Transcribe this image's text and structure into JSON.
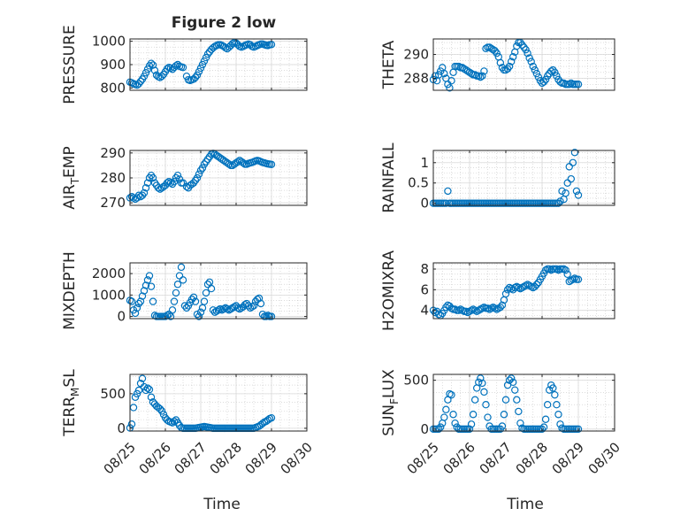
{
  "figure_title": "Figure 2 low",
  "shared_xlabel": "Time",
  "x_tick_labels": [
    "08/25",
    "08/26",
    "08/27",
    "08/28",
    "08/29",
    "08/30"
  ],
  "colors": {
    "marker": "#0072BD",
    "axis": "#262626",
    "grid": "#b0b0b0"
  },
  "chart_data": [
    {
      "id": "pressure",
      "type": "scatter",
      "ylabel": "PRESSURE",
      "xlim": [
        0,
        5
      ],
      "ylim": [
        790,
        1010
      ],
      "yticks": [
        800,
        900,
        1000
      ],
      "grid": true,
      "x": [
        0,
        0.05,
        0.1,
        0.15,
        0.2,
        0.25,
        0.3,
        0.35,
        0.4,
        0.45,
        0.5,
        0.55,
        0.6,
        0.65,
        0.7,
        0.75,
        0.8,
        0.85,
        0.9,
        0.95,
        1.0,
        1.05,
        1.1,
        1.15,
        1.2,
        1.25,
        1.3,
        1.35,
        1.4,
        1.45,
        1.5,
        1.6,
        1.65,
        1.7,
        1.75,
        1.8,
        1.85,
        1.9,
        1.95,
        2.0,
        2.05,
        2.1,
        2.15,
        2.2,
        2.25,
        2.3,
        2.35,
        2.4,
        2.45,
        2.5,
        2.55,
        2.6,
        2.65,
        2.7,
        2.75,
        2.8,
        2.85,
        2.9,
        2.95,
        3.0,
        3.05,
        3.1,
        3.15,
        3.2,
        3.25,
        3.3,
        3.35,
        3.4,
        3.45,
        3.5,
        3.55,
        3.6,
        3.65,
        3.7,
        3.75,
        3.8,
        3.85,
        3.9,
        3.95,
        4.0
      ],
      "y": [
        825,
        822,
        818,
        815,
        812,
        818,
        828,
        838,
        850,
        865,
        880,
        895,
        905,
        898,
        875,
        855,
        848,
        845,
        850,
        858,
        870,
        882,
        888,
        885,
        880,
        888,
        895,
        900,
        893,
        890,
        888,
        850,
        835,
        832,
        835,
        838,
        845,
        855,
        870,
        885,
        900,
        915,
        930,
        945,
        955,
        965,
        972,
        978,
        982,
        985,
        985,
        982,
        978,
        972,
        968,
        975,
        982,
        990,
        995,
        992,
        985,
        978,
        975,
        978,
        982,
        985,
        988,
        985,
        978,
        975,
        978,
        982,
        985,
        988,
        988,
        985,
        983,
        982,
        985,
        986
      ]
    },
    {
      "id": "theta",
      "type": "scatter",
      "ylabel": "THETA",
      "xlim": [
        0,
        5
      ],
      "ylim": [
        287,
        291.3
      ],
      "yticks": [
        288,
        290
      ],
      "grid": true,
      "x": [
        0,
        0.05,
        0.1,
        0.15,
        0.2,
        0.25,
        0.3,
        0.35,
        0.4,
        0.45,
        0.5,
        0.55,
        0.6,
        0.65,
        0.7,
        0.75,
        0.8,
        0.85,
        0.9,
        0.95,
        1.0,
        1.05,
        1.1,
        1.15,
        1.2,
        1.25,
        1.3,
        1.35,
        1.4,
        1.45,
        1.5,
        1.55,
        1.6,
        1.65,
        1.7,
        1.75,
        1.8,
        1.85,
        1.9,
        1.95,
        2.0,
        2.05,
        2.1,
        2.15,
        2.2,
        2.25,
        2.3,
        2.35,
        2.4,
        2.45,
        2.5,
        2.55,
        2.6,
        2.65,
        2.7,
        2.75,
        2.8,
        2.85,
        2.9,
        2.95,
        3.0,
        3.05,
        3.1,
        3.15,
        3.2,
        3.25,
        3.3,
        3.35,
        3.4,
        3.45,
        3.5,
        3.55,
        3.6,
        3.65,
        3.7,
        3.75,
        3.8,
        3.85,
        3.9,
        3.95,
        4.0
      ],
      "y": [
        287.9,
        288.2,
        287.8,
        288.3,
        288.6,
        288.9,
        288.4,
        288.0,
        287.5,
        287.2,
        287.8,
        288.5,
        289.0,
        289.0,
        289.0,
        288.9,
        288.9,
        288.8,
        288.7,
        288.6,
        288.5,
        288.4,
        288.3,
        288.3,
        288.2,
        288.2,
        288.1,
        288.2,
        288.6,
        290.5,
        290.6,
        290.6,
        290.5,
        290.4,
        290.3,
        290.1,
        289.8,
        289.3,
        288.9,
        288.7,
        288.7,
        288.8,
        289.0,
        289.4,
        289.8,
        290.2,
        290.7,
        291.0,
        291.0,
        290.8,
        290.6,
        290.4,
        290.1,
        289.7,
        289.4,
        289.0,
        288.7,
        288.4,
        288.1,
        287.8,
        287.6,
        287.7,
        287.9,
        288.2,
        288.4,
        288.6,
        288.7,
        288.5,
        288.2,
        287.9,
        287.7,
        287.6,
        287.6,
        287.5,
        287.5,
        287.5,
        287.6,
        287.5,
        287.5,
        287.5,
        287.5
      ]
    },
    {
      "id": "air_temp",
      "type": "scatter",
      "ylabel": "AIR_TEMP",
      "xlim": [
        0,
        5
      ],
      "ylim": [
        269,
        291
      ],
      "yticks": [
        270,
        280,
        290
      ],
      "grid": true,
      "x": [
        0,
        0.05,
        0.1,
        0.15,
        0.2,
        0.25,
        0.3,
        0.35,
        0.4,
        0.45,
        0.5,
        0.55,
        0.6,
        0.65,
        0.7,
        0.75,
        0.8,
        0.85,
        0.9,
        0.95,
        1.0,
        1.05,
        1.1,
        1.15,
        1.2,
        1.25,
        1.3,
        1.35,
        1.4,
        1.45,
        1.5,
        1.6,
        1.65,
        1.7,
        1.75,
        1.8,
        1.85,
        1.9,
        1.95,
        2.0,
        2.05,
        2.1,
        2.15,
        2.2,
        2.25,
        2.3,
        2.35,
        2.4,
        2.45,
        2.5,
        2.55,
        2.6,
        2.65,
        2.7,
        2.75,
        2.8,
        2.85,
        2.9,
        2.95,
        3.0,
        3.05,
        3.1,
        3.15,
        3.2,
        3.25,
        3.3,
        3.35,
        3.4,
        3.45,
        3.5,
        3.55,
        3.6,
        3.65,
        3.7,
        3.75,
        3.8,
        3.85,
        3.9,
        3.95,
        4.0
      ],
      "y": [
        272,
        272.5,
        272,
        271.5,
        272,
        273,
        272.5,
        273,
        274,
        276,
        278,
        280,
        281,
        280,
        278,
        277,
        276,
        275.5,
        276,
        276.5,
        277,
        278,
        278.5,
        278,
        277.5,
        278.5,
        280,
        281,
        279.5,
        278,
        278,
        276.5,
        276,
        277,
        277.5,
        278,
        279,
        280,
        281.5,
        283,
        284,
        285.5,
        286.5,
        287.5,
        288.5,
        289.5,
        289.8,
        289.5,
        289,
        288.5,
        288,
        287.5,
        287,
        286.5,
        286,
        285.5,
        285,
        285,
        285.5,
        286,
        286.5,
        287,
        286.5,
        286,
        285.5,
        285.5,
        285.8,
        286,
        286.2,
        286.5,
        286.8,
        287,
        286.8,
        286.5,
        286.2,
        286,
        285.8,
        285.6,
        285.5,
        285.4
      ]
    },
    {
      "id": "rainfall",
      "type": "scatter",
      "ylabel": "RAINFALL",
      "xlim": [
        0,
        5
      ],
      "ylim": [
        -0.05,
        1.3
      ],
      "yticks": [
        0,
        0.5,
        1
      ],
      "ytick_labels": [
        "0",
        "0.5",
        "1"
      ],
      "grid": true,
      "x": [
        0,
        0.05,
        0.1,
        0.15,
        0.2,
        0.25,
        0.3,
        0.35,
        0.4,
        0.45,
        0.5,
        0.55,
        0.6,
        0.65,
        0.7,
        0.75,
        0.8,
        0.85,
        0.9,
        0.95,
        1.0,
        1.05,
        1.1,
        1.15,
        1.2,
        1.25,
        1.3,
        1.35,
        1.4,
        1.45,
        1.5,
        1.55,
        1.6,
        1.65,
        1.7,
        1.75,
        1.8,
        1.85,
        1.9,
        1.95,
        2.0,
        2.05,
        2.1,
        2.15,
        2.2,
        2.25,
        2.3,
        2.35,
        2.4,
        2.45,
        2.5,
        2.55,
        2.6,
        2.65,
        2.7,
        2.75,
        2.8,
        2.85,
        2.9,
        2.95,
        3.0,
        3.05,
        3.1,
        3.15,
        3.2,
        3.25,
        3.3,
        3.35,
        3.4,
        3.45,
        3.5,
        3.55,
        3.6,
        3.65,
        3.7,
        3.75,
        3.8,
        3.85,
        3.9,
        3.95,
        4.0
      ],
      "y": [
        0,
        0,
        0,
        0,
        0,
        0,
        0,
        0,
        0.3,
        0,
        0,
        0,
        0,
        0,
        0,
        0,
        0,
        0,
        0,
        0,
        0,
        0,
        0,
        0,
        0,
        0,
        0,
        0,
        0,
        0,
        0,
        0,
        0,
        0,
        0,
        0,
        0,
        0,
        0,
        0,
        0,
        0,
        0,
        0,
        0,
        0,
        0,
        0,
        0,
        0,
        0,
        0,
        0,
        0,
        0,
        0,
        0,
        0,
        0,
        0,
        0,
        0,
        0,
        0,
        0,
        0,
        0,
        0,
        0,
        0,
        0.05,
        0.3,
        0.1,
        0.25,
        0.5,
        0.9,
        0.6,
        1.0,
        1.25,
        0.3,
        0.2
      ]
    },
    {
      "id": "mixdepth",
      "type": "scatter",
      "ylabel": "MIXDEPTH",
      "xlim": [
        0,
        5
      ],
      "ylim": [
        -100,
        2500
      ],
      "yticks": [
        0,
        1000,
        2000
      ],
      "grid": true,
      "x": [
        0,
        0.05,
        0.1,
        0.15,
        0.2,
        0.25,
        0.3,
        0.35,
        0.4,
        0.45,
        0.5,
        0.55,
        0.6,
        0.65,
        0.7,
        0.75,
        0.8,
        0.85,
        0.9,
        0.95,
        1.0,
        1.05,
        1.1,
        1.15,
        1.2,
        1.25,
        1.3,
        1.35,
        1.4,
        1.45,
        1.5,
        1.55,
        1.6,
        1.65,
        1.7,
        1.75,
        1.8,
        1.85,
        1.9,
        1.95,
        2.0,
        2.05,
        2.1,
        2.15,
        2.2,
        2.25,
        2.3,
        2.35,
        2.4,
        2.45,
        2.5,
        2.55,
        2.6,
        2.65,
        2.7,
        2.75,
        2.8,
        2.85,
        2.9,
        2.95,
        3.0,
        3.05,
        3.1,
        3.15,
        3.2,
        3.25,
        3.3,
        3.35,
        3.4,
        3.45,
        3.5,
        3.55,
        3.6,
        3.65,
        3.7,
        3.75,
        3.8,
        3.85,
        3.9,
        3.95,
        4.0
      ],
      "y": [
        750,
        700,
        300,
        150,
        400,
        600,
        700,
        950,
        1200,
        1450,
        1700,
        1900,
        1400,
        700,
        50,
        0,
        0,
        0,
        0,
        0,
        0,
        50,
        100,
        0,
        300,
        700,
        1100,
        1500,
        1900,
        2300,
        1700,
        500,
        400,
        500,
        650,
        800,
        900,
        700,
        100,
        0,
        200,
        400,
        700,
        1100,
        1500,
        1600,
        1300,
        300,
        200,
        250,
        300,
        350,
        300,
        350,
        400,
        350,
        300,
        350,
        400,
        450,
        500,
        400,
        350,
        400,
        450,
        550,
        600,
        500,
        400,
        450,
        500,
        700,
        800,
        850,
        600,
        100,
        0,
        0,
        50,
        0,
        0
      ]
    },
    {
      "id": "h2omixra",
      "type": "scatter",
      "ylabel": "H2OMIXRA",
      "xlim": [
        0,
        5
      ],
      "ylim": [
        3.2,
        8.6
      ],
      "yticks": [
        4,
        6,
        8
      ],
      "grid": true,
      "x": [
        0,
        0.05,
        0.1,
        0.15,
        0.2,
        0.25,
        0.3,
        0.35,
        0.4,
        0.45,
        0.5,
        0.55,
        0.6,
        0.65,
        0.7,
        0.75,
        0.8,
        0.85,
        0.9,
        0.95,
        1.0,
        1.05,
        1.1,
        1.15,
        1.2,
        1.25,
        1.3,
        1.35,
        1.4,
        1.45,
        1.5,
        1.55,
        1.6,
        1.65,
        1.7,
        1.75,
        1.8,
        1.85,
        1.9,
        1.95,
        2.0,
        2.05,
        2.1,
        2.15,
        2.2,
        2.25,
        2.3,
        2.35,
        2.4,
        2.45,
        2.5,
        2.55,
        2.6,
        2.65,
        2.7,
        2.75,
        2.8,
        2.85,
        2.9,
        2.95,
        3.0,
        3.05,
        3.1,
        3.15,
        3.2,
        3.25,
        3.3,
        3.35,
        3.4,
        3.45,
        3.5,
        3.55,
        3.6,
        3.65,
        3.7,
        3.75,
        3.8,
        3.85,
        3.9,
        3.95,
        4.0
      ],
      "y": [
        4.0,
        3.8,
        3.9,
        3.6,
        3.5,
        3.7,
        4.0,
        4.3,
        4.5,
        4.4,
        4.2,
        4.1,
        4.1,
        4.0,
        4.0,
        4.1,
        4.0,
        3.9,
        3.9,
        3.8,
        3.9,
        4.0,
        4.1,
        4.0,
        3.9,
        4.0,
        4.1,
        4.2,
        4.3,
        4.2,
        4.2,
        4.1,
        4.2,
        4.3,
        4.2,
        4.1,
        4.2,
        4.3,
        4.5,
        5.0,
        5.6,
        6.0,
        6.2,
        6.1,
        6.0,
        6.2,
        6.3,
        6.2,
        6.1,
        6.2,
        6.3,
        6.4,
        6.5,
        6.4,
        6.3,
        6.2,
        6.3,
        6.5,
        6.7,
        7.0,
        7.3,
        7.6,
        7.9,
        8.0,
        8.0,
        7.9,
        8.0,
        8.0,
        8.0,
        7.9,
        8.0,
        8.0,
        8.0,
        7.9,
        7.5,
        6.8,
        6.9,
        7.0,
        7.1,
        7.0,
        7.0
      ]
    },
    {
      "id": "terr_msl",
      "type": "scatter",
      "ylabel": "TERR_MSL",
      "xlim": [
        0,
        5
      ],
      "ylim": [
        -40,
        780
      ],
      "yticks": [
        0,
        500
      ],
      "grid": true,
      "x": [
        0,
        0.05,
        0.1,
        0.15,
        0.2,
        0.25,
        0.3,
        0.35,
        0.4,
        0.45,
        0.5,
        0.55,
        0.6,
        0.65,
        0.7,
        0.75,
        0.8,
        0.85,
        0.9,
        0.95,
        1.0,
        1.05,
        1.1,
        1.15,
        1.2,
        1.25,
        1.3,
        1.35,
        1.4,
        1.45,
        1.5,
        1.55,
        1.6,
        1.65,
        1.7,
        1.75,
        1.8,
        1.85,
        1.9,
        1.95,
        2.0,
        2.05,
        2.1,
        2.15,
        2.2,
        2.25,
        2.3,
        2.35,
        2.4,
        2.45,
        2.5,
        2.55,
        2.6,
        2.65,
        2.7,
        2.75,
        2.8,
        2.85,
        2.9,
        2.95,
        3.0,
        3.05,
        3.1,
        3.15,
        3.2,
        3.25,
        3.3,
        3.35,
        3.4,
        3.45,
        3.5,
        3.55,
        3.6,
        3.65,
        3.7,
        3.75,
        3.8,
        3.85,
        3.9,
        3.95,
        4.0
      ],
      "y": [
        5,
        60,
        300,
        450,
        500,
        550,
        650,
        720,
        600,
        550,
        580,
        560,
        450,
        380,
        350,
        320,
        300,
        280,
        250,
        200,
        150,
        120,
        100,
        90,
        80,
        100,
        120,
        80,
        40,
        10,
        0,
        0,
        0,
        0,
        0,
        0,
        0,
        0,
        5,
        10,
        15,
        20,
        25,
        20,
        15,
        10,
        5,
        0,
        0,
        0,
        0,
        0,
        0,
        0,
        0,
        0,
        0,
        0,
        0,
        0,
        0,
        0,
        0,
        0,
        0,
        0,
        0,
        0,
        0,
        0,
        0,
        10,
        20,
        30,
        50,
        70,
        90,
        100,
        120,
        140,
        150
      ]
    },
    {
      "id": "sun_flux",
      "type": "scatter",
      "ylabel": "SUN_FLUX",
      "xlim": [
        0,
        5
      ],
      "ylim": [
        -20,
        560
      ],
      "yticks": [
        0,
        500
      ],
      "grid": true,
      "x": [
        0,
        0.05,
        0.1,
        0.15,
        0.2,
        0.25,
        0.3,
        0.35,
        0.4,
        0.45,
        0.5,
        0.55,
        0.6,
        0.65,
        0.7,
        0.75,
        0.8,
        0.85,
        0.9,
        0.95,
        1.0,
        1.05,
        1.1,
        1.15,
        1.2,
        1.25,
        1.3,
        1.35,
        1.4,
        1.45,
        1.5,
        1.55,
        1.6,
        1.65,
        1.7,
        1.75,
        1.8,
        1.85,
        1.9,
        1.95,
        2.0,
        2.05,
        2.1,
        2.15,
        2.2,
        2.25,
        2.3,
        2.35,
        2.4,
        2.45,
        2.5,
        2.55,
        2.6,
        2.65,
        2.7,
        2.75,
        2.8,
        2.85,
        2.9,
        2.95,
        3.0,
        3.05,
        3.1,
        3.15,
        3.2,
        3.25,
        3.3,
        3.35,
        3.4,
        3.45,
        3.5,
        3.55,
        3.6,
        3.65,
        3.7,
        3.75,
        3.8,
        3.85,
        3.9,
        3.95,
        4.0
      ],
      "y": [
        0,
        0,
        0,
        0,
        20,
        60,
        120,
        200,
        300,
        360,
        350,
        150,
        60,
        20,
        0,
        0,
        0,
        0,
        0,
        0,
        0,
        50,
        150,
        300,
        420,
        480,
        520,
        470,
        380,
        250,
        120,
        30,
        0,
        0,
        0,
        0,
        0,
        0,
        30,
        150,
        300,
        450,
        500,
        520,
        480,
        400,
        300,
        180,
        60,
        10,
        0,
        0,
        0,
        0,
        0,
        0,
        0,
        0,
        0,
        0,
        0,
        20,
        100,
        250,
        400,
        450,
        420,
        350,
        250,
        150,
        50,
        10,
        0,
        0,
        0,
        0,
        0,
        0,
        0,
        0,
        0
      ]
    }
  ]
}
